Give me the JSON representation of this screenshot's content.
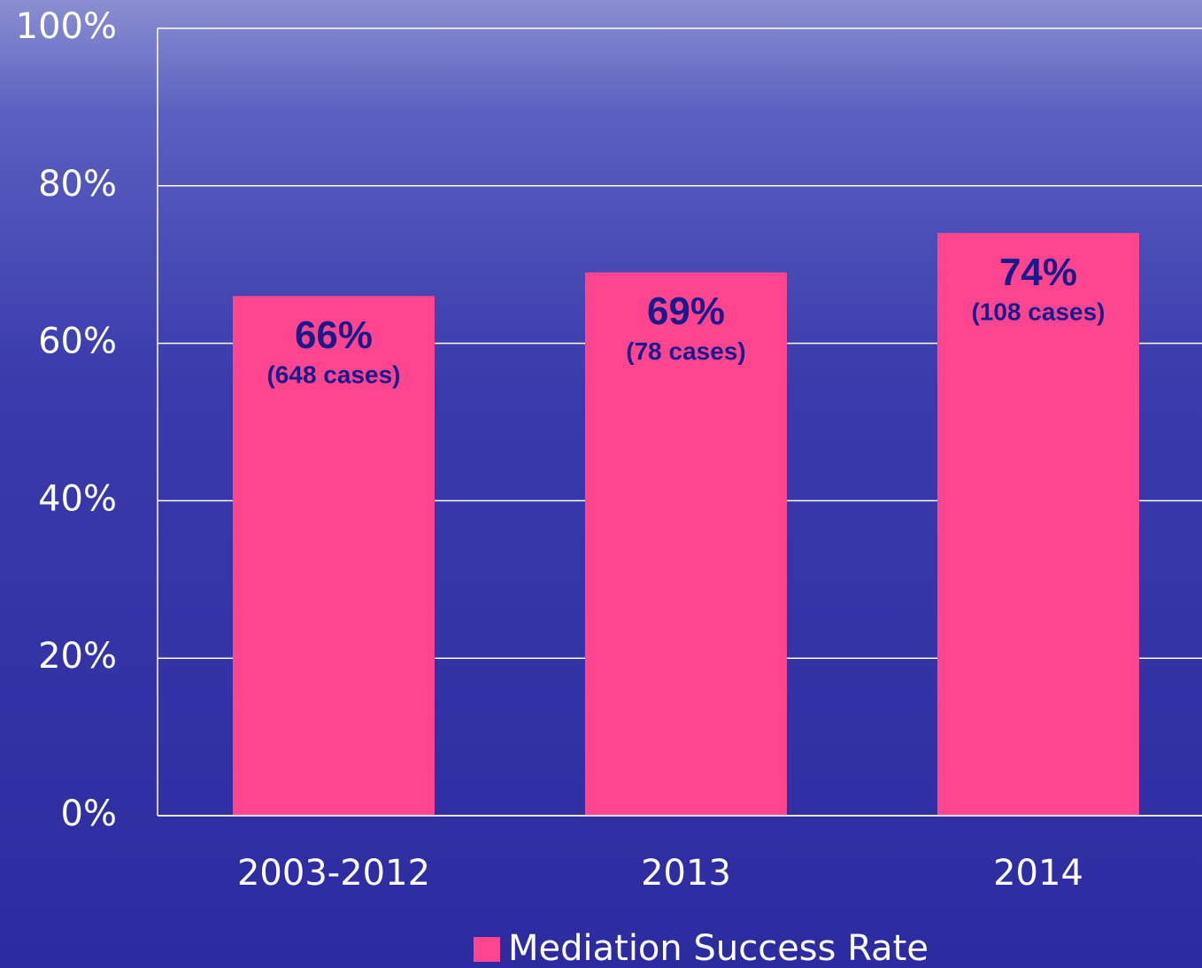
{
  "chart_data": {
    "type": "bar",
    "categories": [
      "2003-2012",
      "2013",
      "2014"
    ],
    "series": [
      {
        "name": "Mediation Success Rate",
        "color": "#ff4590",
        "values": [
          66,
          69,
          74
        ],
        "value_labels": [
          "66%",
          "69%",
          "74%"
        ]
      }
    ],
    "annotations": [
      "(648 cases)",
      "(78 cases)",
      "(108 cases)"
    ],
    "ylim": [
      0,
      100
    ],
    "yticks": [
      {
        "value": 0,
        "label": "0%"
      },
      {
        "value": 20,
        "label": "20%"
      },
      {
        "value": 40,
        "label": "40%"
      },
      {
        "value": 60,
        "label": "60%"
      },
      {
        "value": 80,
        "label": "80%"
      },
      {
        "value": 100,
        "label": "100%"
      }
    ],
    "grid": true,
    "legend": "bottom"
  }
}
